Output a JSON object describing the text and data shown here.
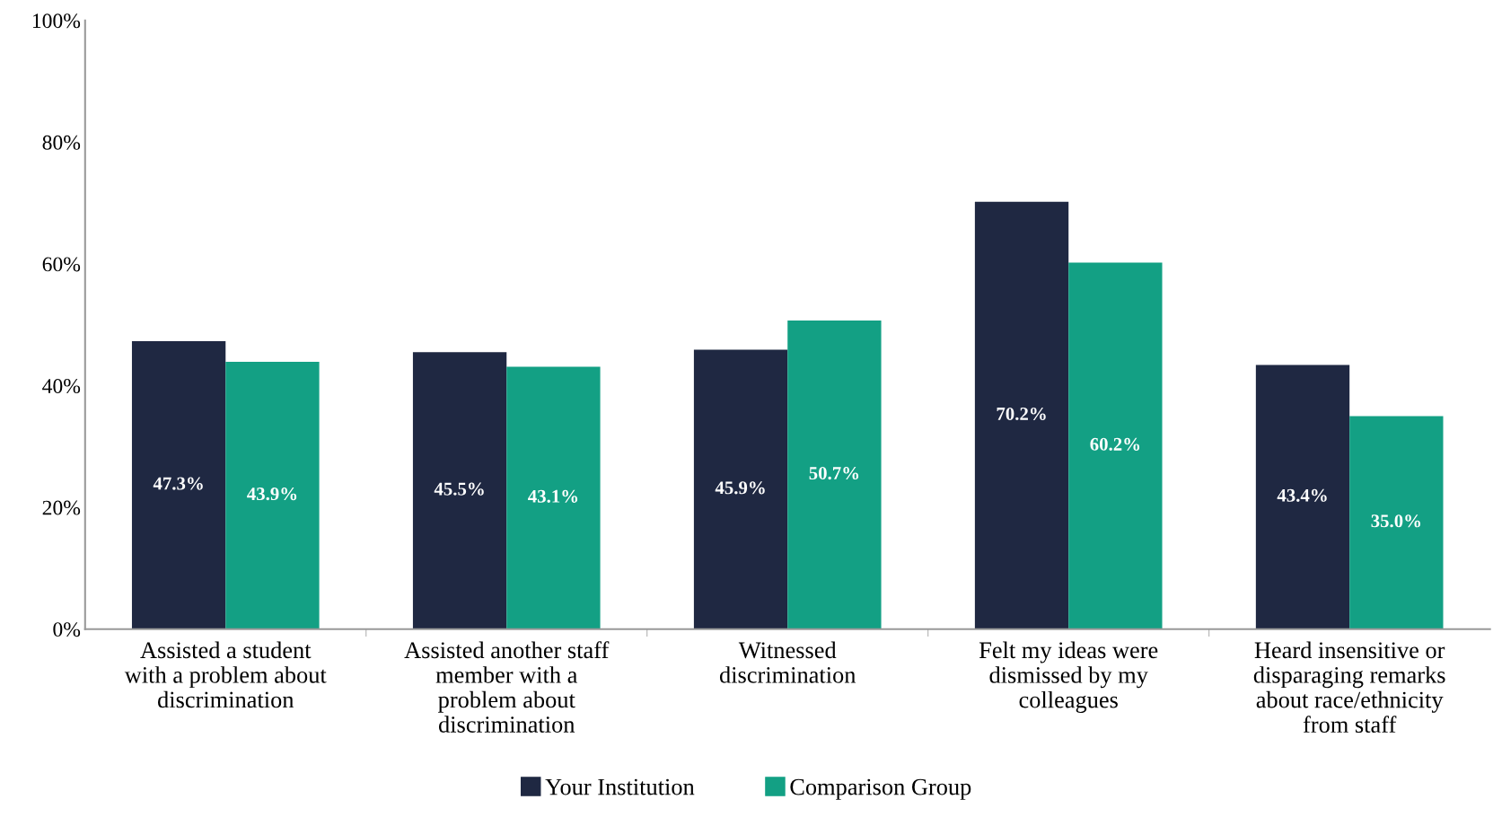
{
  "chart_data": {
    "type": "bar",
    "categories": [
      "Assisted a student\nwith a problem about\ndiscrimination",
      "Assisted another staff\nmember with a\nproblem about\ndiscrimination",
      "Witnessed\ndiscrimination",
      "Felt my ideas were\ndismissed by my\ncolleagues",
      "Heard insensitive or\ndisparaging remarks\nabout race/ethnicity\nfrom staff"
    ],
    "series": [
      {
        "name": "Your Institution",
        "color": "#1f2842",
        "values": [
          47.3,
          45.5,
          45.9,
          70.2,
          43.4
        ],
        "value_labels": [
          "47.3%",
          "45.5%",
          "45.9%",
          "70.2%",
          "43.4%"
        ]
      },
      {
        "name": "Comparison Group",
        "color": "#13a084",
        "values": [
          43.9,
          43.1,
          50.7,
          60.2,
          35.0
        ],
        "value_labels": [
          "43.9%",
          "43.1%",
          "50.7%",
          "60.2%",
          "35.0%"
        ]
      }
    ],
    "ylim": [
      0,
      100
    ],
    "yticks": [
      {
        "value": 0,
        "label": "0%"
      },
      {
        "value": 20,
        "label": "20%"
      },
      {
        "value": 40,
        "label": "40%"
      },
      {
        "value": 60,
        "label": "60%"
      },
      {
        "value": 80,
        "label": "80%"
      },
      {
        "value": 100,
        "label": "100%"
      }
    ],
    "grid": false,
    "legend": "bottom"
  }
}
